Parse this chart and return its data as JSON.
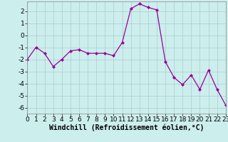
{
  "x": [
    0,
    1,
    2,
    3,
    4,
    5,
    6,
    7,
    8,
    9,
    10,
    11,
    12,
    13,
    14,
    15,
    16,
    17,
    18,
    19,
    20,
    21,
    22,
    23
  ],
  "y": [
    -2.0,
    -1.0,
    -1.5,
    -2.6,
    -2.0,
    -1.3,
    -1.2,
    -1.5,
    -1.5,
    -1.5,
    -1.7,
    -0.6,
    2.2,
    2.6,
    2.3,
    2.1,
    -2.2,
    -3.5,
    -4.1,
    -3.3,
    -4.5,
    -2.9,
    -4.5,
    -5.8
  ],
  "line_color": "#990099",
  "marker": "D",
  "marker_size": 2,
  "bg_color": "#cceeed",
  "grid_color": "#aacccc",
  "xlabel": "Windchill (Refroidissement éolien,°C)",
  "xlabel_fontsize": 7,
  "tick_fontsize": 6.5,
  "xlim": [
    0,
    23
  ],
  "ylim": [
    -6.5,
    2.8
  ],
  "yticks": [
    -6,
    -5,
    -4,
    -3,
    -2,
    -1,
    0,
    1,
    2
  ],
  "xticks": [
    0,
    1,
    2,
    3,
    4,
    5,
    6,
    7,
    8,
    9,
    10,
    11,
    12,
    13,
    14,
    15,
    16,
    17,
    18,
    19,
    20,
    21,
    22,
    23
  ]
}
